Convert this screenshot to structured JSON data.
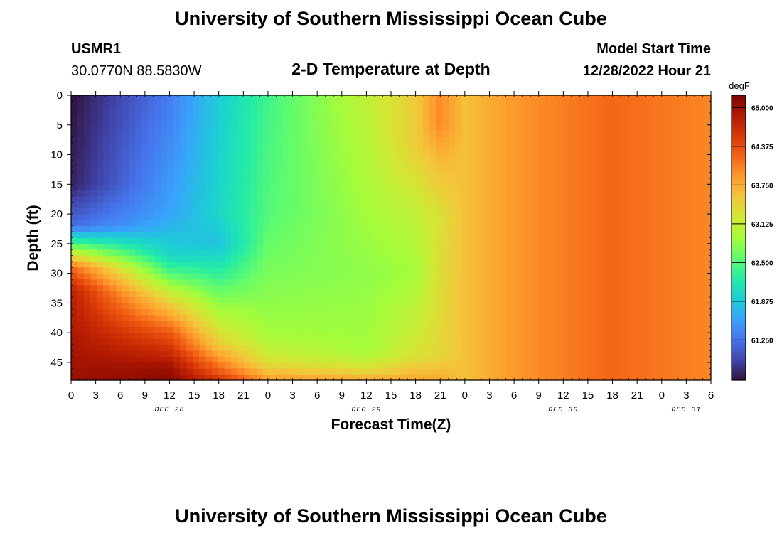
{
  "header": {
    "title": "University of Southern Mississippi Ocean Cube",
    "station": "USMR1",
    "coordinates": "30.0770N  88.5830W",
    "subtitle": "2-D Temperature at Depth",
    "model_label": "Model Start Time",
    "model_time": "12/28/2022 Hour 21"
  },
  "footer": {
    "title": "University of Southern Mississippi Ocean Cube"
  },
  "chart_data": {
    "type": "heatmap",
    "title": "2-D Temperature at Depth",
    "xlabel": "Forecast Time(Z)",
    "ylabel": "Depth (ft)",
    "x_range_hours_from_dec28_00z": [
      0,
      78
    ],
    "ylim": [
      0,
      48
    ],
    "y_inverted": true,
    "x_ticks": [
      "0",
      "3",
      "6",
      "9",
      "12",
      "15",
      "18",
      "21",
      "0",
      "3",
      "6",
      "9",
      "12",
      "15",
      "18",
      "21",
      "0",
      "3",
      "6",
      "9",
      "12",
      "15",
      "18",
      "21",
      "0",
      "3",
      "6"
    ],
    "y_ticks": [
      "0",
      "5",
      "10",
      "15",
      "20",
      "25",
      "30",
      "35",
      "40",
      "45"
    ],
    "date_labels": [
      {
        "label": "DEC 28",
        "at_hour": 12
      },
      {
        "label": "DEC 29",
        "at_hour": 36
      },
      {
        "label": "DEC 30",
        "at_hour": 60
      },
      {
        "label": "DEC 31",
        "at_hour": 75
      }
    ],
    "colorbar": {
      "unit": "degF",
      "range": [
        60.6,
        65.2
      ],
      "ticks": [
        "65.000",
        "64.375",
        "63.750",
        "63.125",
        "62.500",
        "61.875",
        "61.250"
      ],
      "colors": [
        "#30123b",
        "#4145ab",
        "#4675ed",
        "#39a2fc",
        "#1bcfd4",
        "#24eca6",
        "#61fc6c",
        "#a4fc3b",
        "#d1e834",
        "#f3c63a",
        "#fe9b2d",
        "#f36315",
        "#d93806",
        "#b11901",
        "#7a0403"
      ]
    },
    "sample_profiles": [
      {
        "x": 0,
        "depths": [
          0,
          15,
          22,
          26,
          29,
          33,
          48
        ],
        "values": [
          60.6,
          60.7,
          61.2,
          62.9,
          64.2,
          64.8,
          65.0
        ]
      },
      {
        "x": 12,
        "depths": [
          0,
          20,
          27,
          30,
          34,
          40,
          46,
          48
        ],
        "values": [
          61.3,
          61.6,
          62.0,
          62.5,
          63.3,
          64.3,
          65.0,
          65.1
        ]
      },
      {
        "x": 18,
        "depths": [
          0,
          20,
          25,
          30,
          36,
          42,
          46,
          48
        ],
        "values": [
          61.9,
          62.0,
          61.8,
          62.3,
          62.9,
          63.5,
          64.2,
          64.6
        ]
      },
      {
        "x": 24,
        "depths": [
          0,
          20,
          30,
          40,
          45,
          48
        ],
        "values": [
          62.4,
          62.5,
          62.7,
          62.9,
          63.3,
          63.9
        ]
      },
      {
        "x": 36,
        "depths": [
          0,
          20,
          30,
          43,
          46,
          48
        ],
        "values": [
          63.1,
          62.9,
          62.8,
          62.9,
          63.3,
          63.8
        ]
      },
      {
        "x": 42,
        "depths": [
          0,
          8,
          20,
          30,
          44,
          48
        ],
        "values": [
          63.5,
          63.5,
          63.1,
          62.9,
          63.3,
          63.8
        ]
      },
      {
        "x": 45,
        "depths": [
          0,
          5,
          10,
          20,
          44,
          48
        ],
        "values": [
          64.0,
          64.0,
          63.7,
          63.3,
          63.4,
          63.8
        ]
      },
      {
        "x": 48,
        "depths": [
          0,
          48
        ],
        "values": [
          63.6,
          63.6
        ]
      },
      {
        "x": 54,
        "depths": [
          0,
          48
        ],
        "values": [
          63.9,
          63.9
        ]
      },
      {
        "x": 66,
        "depths": [
          0,
          48
        ],
        "values": [
          64.2,
          64.2
        ]
      },
      {
        "x": 78,
        "depths": [
          0,
          48
        ],
        "values": [
          64.0,
          64.0
        ]
      }
    ]
  }
}
